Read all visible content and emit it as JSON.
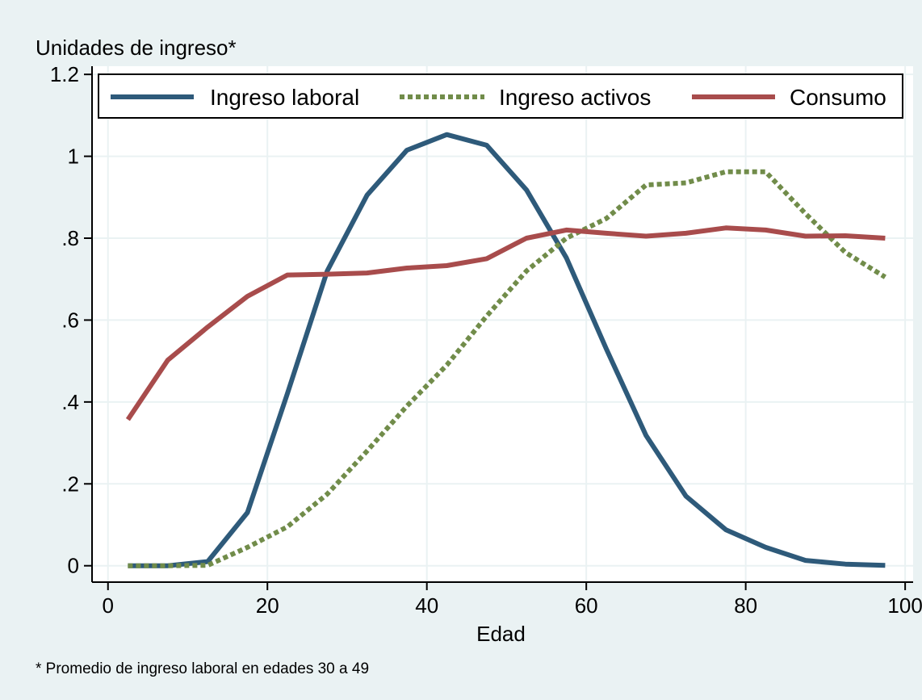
{
  "chart_data": {
    "type": "line",
    "title": "",
    "ylabel": "Unidades de ingreso*",
    "xlabel": "Edad",
    "note": "* Promedio de ingreso laboral en edades 30 a 49",
    "xlim": [
      -2,
      101
    ],
    "ylim": [
      -0.04,
      1.22
    ],
    "xticks": [
      0,
      20,
      40,
      60,
      80,
      100
    ],
    "xtick_labels": [
      "0",
      "20",
      "40",
      "60",
      "80",
      "100"
    ],
    "yticks": [
      0,
      0.2,
      0.4,
      0.6,
      0.8,
      1,
      1.2
    ],
    "ytick_labels": [
      "0",
      ".2",
      ".4",
      ".6",
      ".8",
      "1",
      "1.2"
    ],
    "grid": true,
    "legend_position": "top",
    "x": [
      2.5,
      7.5,
      12.5,
      17.5,
      22.5,
      27.5,
      32.5,
      37.5,
      42.5,
      47.5,
      52.5,
      57.5,
      62.5,
      67.5,
      72.5,
      77.5,
      82.5,
      87.5,
      92.5,
      97.5
    ],
    "series": [
      {
        "name": "Ingreso laboral",
        "color": "#2e5a7a",
        "style": "solid",
        "values": [
          0,
          0,
          0.01,
          0.13,
          0.42,
          0.72,
          0.905,
          1.015,
          1.053,
          1.027,
          0.918,
          0.752,
          0.53,
          0.318,
          0.17,
          0.088,
          0.045,
          0.013,
          0.004,
          0.001
        ]
      },
      {
        "name": "Ingreso activos",
        "color": "#718c4a",
        "style": "dotted",
        "values": [
          0,
          0,
          0.001,
          0.045,
          0.095,
          0.175,
          0.28,
          0.39,
          0.49,
          0.61,
          0.72,
          0.8,
          0.848,
          0.93,
          0.935,
          0.962,
          0.962,
          0.86,
          0.765,
          0.705
        ]
      },
      {
        "name": "Consumo",
        "color": "#a84c4c",
        "style": "solid",
        "values": [
          0.357,
          0.502,
          0.583,
          0.658,
          0.71,
          0.712,
          0.715,
          0.727,
          0.733,
          0.75,
          0.8,
          0.82,
          0.812,
          0.805,
          0.812,
          0.825,
          0.82,
          0.805,
          0.806,
          0.8
        ]
      }
    ],
    "colors": {
      "outer_background": "#eaf2f3",
      "plot_background": "#ffffff",
      "grid": "#eaf2f3",
      "axis": "#000000"
    }
  }
}
